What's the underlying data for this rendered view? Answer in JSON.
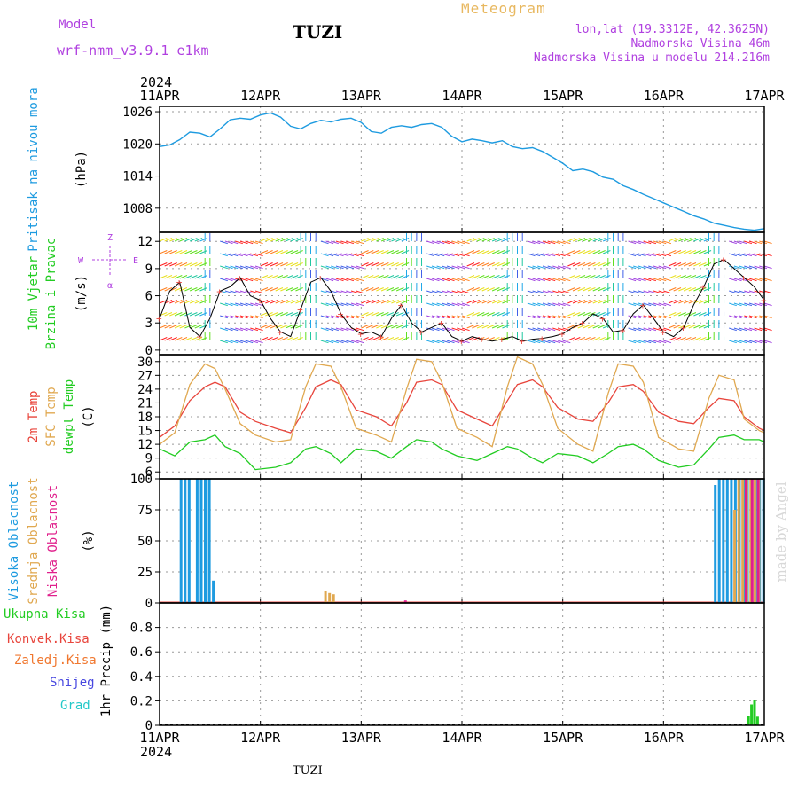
{
  "header": {
    "model_label": "Model",
    "model_value": "wrf-nmm_v3.9.1  e1km",
    "station": "TUZI",
    "title": "Meteogram",
    "location_line1": "lon,lat (19.3312E, 42.3625N)",
    "location_line2": "Nadmorska Visina 46m",
    "location_line3": "Nadmorska Visina u modelu 214.216m"
  },
  "footer": {
    "station": "TUZI",
    "credit": "made by Angel"
  },
  "colors": {
    "pressure": "#1e9be0",
    "temp2m": "#e8453c",
    "sfc": "#e0a850",
    "dew": "#22cc22",
    "high_cloud": "#1e9be0",
    "precip": "#22cc22",
    "grid": "#9a9a9a",
    "snow": "#4848e0",
    "hail": "#22c8c8",
    "conv": "#e8453c",
    "frz": "#f07830",
    "wind_dir_label": "#b040e0",
    "low_cloud": "#e0208c"
  },
  "axis": {
    "year": "2024",
    "dates": [
      "11APR",
      "12APR",
      "13APR",
      "14APR",
      "15APR",
      "16APR",
      "17APR"
    ]
  },
  "panels": {
    "pressure": {
      "label1": "Pritisak na nivou mora",
      "unit": "(hPa)"
    },
    "wind": {
      "label1": "10m Vjetar",
      "label2": "Brzina i Pravac",
      "unit": "(m/s)",
      "compass_e": "E",
      "compass_w": "W",
      "compass_n": "Z",
      "compass_s": "α"
    },
    "temp": {
      "label1": "2m Temp",
      "label2": "SFC Temp",
      "label3": "dewpt Temp",
      "unit": "(C)"
    },
    "cloud": {
      "label1": "Visoka Oblacnost",
      "label2": "Srednja Oblacnost",
      "label3": "Niska Oblacnost",
      "unit": "(%)"
    },
    "precip": {
      "label1": "Ukupna Kisa",
      "label2": "Konvek.Kisa",
      "label3": "Zaledj.Kisa",
      "label4": "Snijeg",
      "label5": "Grad",
      "unit": "1hr Precip (mm)"
    }
  },
  "chart_data": [
    {
      "type": "line",
      "title": "",
      "ylabel": "Pritisak na nivou mora (hPa)",
      "ylim": [
        1003.5,
        1027
      ],
      "yticks": [
        1008,
        1014,
        1020,
        1026
      ],
      "grid": true,
      "series": [
        {
          "name": "Pritisak na nivou mora",
          "x": [
            0,
            0.1,
            0.2,
            0.3,
            0.4,
            0.5,
            0.6,
            0.7,
            0.8,
            0.9,
            1.0,
            1.1,
            1.2,
            1.3,
            1.4,
            1.5,
            1.6,
            1.7,
            1.8,
            1.9,
            2.0,
            2.1,
            2.2,
            2.3,
            2.4,
            2.5,
            2.6,
            2.7,
            2.8,
            2.9,
            3.0,
            3.1,
            3.2,
            3.3,
            3.4,
            3.5,
            3.6,
            3.7,
            3.8,
            3.9,
            4.0,
            4.1,
            4.2,
            4.3,
            4.4,
            4.5,
            4.6,
            4.7,
            4.8,
            4.9,
            5.0,
            5.1,
            5.2,
            5.3,
            5.4,
            5.5,
            5.6,
            5.7,
            5.8,
            5.9,
            6.0
          ],
          "values": [
            1019.5,
            1019.8,
            1020.8,
            1022.2,
            1022.0,
            1021.3,
            1022.8,
            1024.5,
            1024.8,
            1024.6,
            1025.4,
            1025.8,
            1025.0,
            1023.3,
            1022.8,
            1023.8,
            1024.4,
            1024.1,
            1024.6,
            1024.8,
            1024.0,
            1022.3,
            1022.0,
            1023.1,
            1023.4,
            1023.1,
            1023.6,
            1023.8,
            1023.1,
            1021.4,
            1020.4,
            1020.9,
            1020.6,
            1020.2,
            1020.6,
            1019.5,
            1019.1,
            1019.3,
            1018.6,
            1017.5,
            1016.4,
            1015.0,
            1015.3,
            1014.8,
            1013.8,
            1013.4,
            1012.2,
            1011.5,
            1010.6,
            1009.8,
            1009.0,
            1008.2,
            1007.4,
            1006.6,
            1006.0,
            1005.2,
            1004.8,
            1004.4,
            1004.1,
            1003.9,
            1004.2
          ]
        }
      ]
    },
    {
      "type": "line",
      "title": "",
      "ylabel": "10m Vjetar Brzina i Pravac (m/s)",
      "ylim": [
        -0.5,
        13
      ],
      "yticks": [
        0,
        3,
        6,
        9,
        12
      ],
      "grid": true,
      "series": [
        {
          "name": "Brzina",
          "x": [
            0,
            0.1,
            0.2,
            0.3,
            0.4,
            0.5,
            0.6,
            0.7,
            0.8,
            0.9,
            1.0,
            1.1,
            1.2,
            1.3,
            1.4,
            1.5,
            1.6,
            1.7,
            1.8,
            1.9,
            2.0,
            2.1,
            2.2,
            2.3,
            2.4,
            2.5,
            2.6,
            2.7,
            2.8,
            2.9,
            3.0,
            3.1,
            3.2,
            3.3,
            3.4,
            3.5,
            3.6,
            3.7,
            3.8,
            3.9,
            4.0,
            4.1,
            4.2,
            4.3,
            4.4,
            4.5,
            4.6,
            4.7,
            4.8,
            4.9,
            5.0,
            5.1,
            5.2,
            5.3,
            5.4,
            5.5,
            5.6,
            5.7,
            5.8,
            5.9,
            6.0
          ],
          "values": [
            3.5,
            6.5,
            7.5,
            2.5,
            1.5,
            3.5,
            6.5,
            7.0,
            8.0,
            6.0,
            5.5,
            3.5,
            2.0,
            1.5,
            4.5,
            7.5,
            8.0,
            6.5,
            4.0,
            2.5,
            1.8,
            2.0,
            1.5,
            3.5,
            5.0,
            3.0,
            2.0,
            2.5,
            3.0,
            1.5,
            1.0,
            1.5,
            1.2,
            1.0,
            1.2,
            1.5,
            1.0,
            1.2,
            1.3,
            1.5,
            1.8,
            2.5,
            3.0,
            4.0,
            3.5,
            2.0,
            2.2,
            4.0,
            5.0,
            3.5,
            2.0,
            1.5,
            2.5,
            5.0,
            7.0,
            9.5,
            10.0,
            9.0,
            8.0,
            7.0,
            5.5
          ]
        }
      ]
    },
    {
      "type": "line",
      "title": "",
      "ylabel": "Temp (C)",
      "ylim": [
        4.5,
        31.5
      ],
      "yticks": [
        6,
        9,
        12,
        15,
        18,
        21,
        24,
        27,
        30
      ],
      "grid": true,
      "series": [
        {
          "name": "2m Temp",
          "x": [
            0,
            0.15,
            0.3,
            0.45,
            0.55,
            0.65,
            0.8,
            0.95,
            1.15,
            1.3,
            1.45,
            1.55,
            1.7,
            1.8,
            1.95,
            2.15,
            2.3,
            2.45,
            2.55,
            2.7,
            2.8,
            2.95,
            3.15,
            3.3,
            3.45,
            3.55,
            3.7,
            3.8,
            3.95,
            4.15,
            4.3,
            4.45,
            4.55,
            4.7,
            4.8,
            4.95,
            5.15,
            5.3,
            5.45,
            5.55,
            5.7,
            5.8,
            5.95,
            6.0
          ],
          "values": [
            13.5,
            16.0,
            21.5,
            24.5,
            25.5,
            24.5,
            19.0,
            17.0,
            15.5,
            14.5,
            20.0,
            24.5,
            26.0,
            25.0,
            19.5,
            18.0,
            16.0,
            21.0,
            25.5,
            26.0,
            25.0,
            19.5,
            17.5,
            16.0,
            21.5,
            25.0,
            26.0,
            24.5,
            20.0,
            17.5,
            17.0,
            21.0,
            24.5,
            25.0,
            23.5,
            19.0,
            17.0,
            16.5,
            20.0,
            22.0,
            21.5,
            18.0,
            15.5,
            15.0
          ]
        },
        {
          "name": "SFC Temp",
          "x": [
            0,
            0.15,
            0.3,
            0.45,
            0.55,
            0.65,
            0.8,
            0.95,
            1.15,
            1.3,
            1.45,
            1.55,
            1.7,
            1.8,
            1.95,
            2.15,
            2.3,
            2.45,
            2.55,
            2.7,
            2.8,
            2.95,
            3.15,
            3.3,
            3.45,
            3.55,
            3.7,
            3.8,
            3.95,
            4.15,
            4.3,
            4.45,
            4.55,
            4.7,
            4.8,
            4.95,
            5.15,
            5.3,
            5.45,
            5.55,
            5.7,
            5.8,
            5.95,
            6.0
          ],
          "values": [
            12.0,
            14.5,
            25.0,
            29.5,
            28.5,
            24.0,
            16.5,
            14.0,
            12.5,
            13.0,
            24.5,
            29.5,
            29.0,
            24.5,
            15.5,
            14.0,
            12.5,
            24.0,
            30.5,
            30.0,
            25.5,
            15.5,
            13.5,
            11.5,
            24.5,
            31.0,
            29.5,
            25.0,
            15.5,
            12.0,
            10.5,
            23.0,
            29.5,
            29.0,
            25.5,
            13.5,
            11.0,
            10.5,
            22.0,
            27.0,
            26.0,
            17.5,
            15.0,
            14.5
          ]
        },
        {
          "name": "dewpt Temp",
          "x": [
            0,
            0.15,
            0.3,
            0.45,
            0.55,
            0.65,
            0.8,
            0.95,
            1.15,
            1.3,
            1.45,
            1.55,
            1.7,
            1.8,
            1.95,
            2.15,
            2.3,
            2.45,
            2.55,
            2.7,
            2.8,
            2.95,
            3.15,
            3.3,
            3.45,
            3.55,
            3.7,
            3.8,
            3.95,
            4.15,
            4.3,
            4.45,
            4.55,
            4.7,
            4.8,
            4.95,
            5.15,
            5.3,
            5.45,
            5.55,
            5.7,
            5.8,
            5.95,
            6.0
          ],
          "values": [
            11.0,
            9.5,
            12.5,
            13.0,
            14.0,
            11.5,
            10.0,
            6.5,
            7.0,
            8.0,
            11.0,
            11.5,
            10.0,
            8.0,
            11.0,
            10.5,
            9.0,
            11.5,
            13.0,
            12.5,
            11.0,
            9.5,
            8.5,
            10.0,
            11.5,
            11.0,
            9.0,
            8.0,
            10.0,
            9.5,
            8.0,
            10.0,
            11.5,
            12.0,
            11.0,
            8.5,
            7.0,
            7.5,
            11.0,
            13.5,
            14.0,
            13.0,
            13.0,
            12.5
          ]
        }
      ]
    },
    {
      "type": "bar",
      "title": "",
      "ylabel": "Oblacnost (%)",
      "ylim": [
        0,
        100
      ],
      "yticks": [
        0,
        25,
        50,
        75,
        100
      ],
      "grid": true,
      "series": [
        {
          "name": "Visoka Oblacnost",
          "x": [
            0.2,
            0.24,
            0.28,
            0.36,
            0.4,
            0.44,
            0.48,
            0.52,
            5.5,
            5.54,
            5.58,
            5.62,
            5.66,
            5.7,
            5.74,
            5.78,
            5.82,
            5.86,
            5.9,
            5.94,
            5.98
          ],
          "values": [
            100,
            100,
            100,
            100,
            100,
            100,
            100,
            18,
            95,
            100,
            100,
            100,
            100,
            100,
            100,
            100,
            100,
            100,
            100,
            100,
            100
          ]
        },
        {
          "name": "Srednja Oblacnost",
          "x": [
            1.62,
            1.66,
            1.7,
            5.68,
            5.72,
            5.76,
            5.8,
            5.84,
            5.88,
            5.92
          ],
          "values": [
            10,
            8,
            7,
            75,
            100,
            100,
            100,
            100,
            100,
            100
          ]
        },
        {
          "name": "Niska Oblacnost",
          "x": [
            2.4,
            5.78,
            5.84,
            5.9
          ],
          "values": [
            2,
            100,
            100,
            100
          ]
        }
      ]
    },
    {
      "type": "bar",
      "title": "",
      "ylabel": "1hr Precip (mm)",
      "ylim": [
        0,
        1.0
      ],
      "yticks": [
        0,
        0.2,
        0.4,
        0.6,
        0.8
      ],
      "grid": true,
      "series": [
        {
          "name": "Ukupna Kisa",
          "x": [
            5.83,
            5.86,
            5.89,
            5.92
          ],
          "values": [
            0.08,
            0.17,
            0.21,
            0.07
          ]
        }
      ]
    }
  ]
}
